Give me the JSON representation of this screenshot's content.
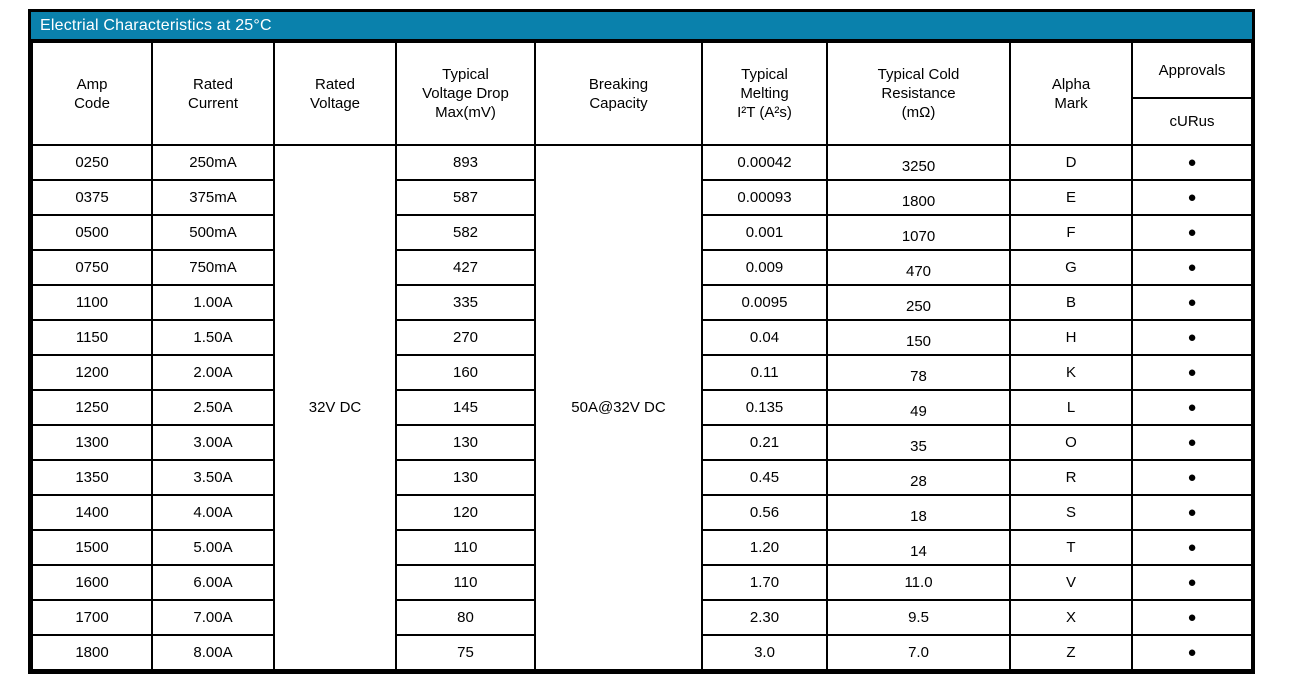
{
  "table": {
    "title": "Electrial Characteristics at 25°C",
    "title_bg": "#0A81AC",
    "title_color": "#ffffff",
    "border_color": "#000000",
    "headers": {
      "amp_code": "Amp\nCode",
      "rated_current": "Rated\nCurrent",
      "rated_voltage": "Rated\nVoltage",
      "voltage_drop": "Typical\nVoltage Drop\nMax(mV)",
      "breaking_capacity": "Breaking\nCapacity",
      "melting_i2t": "Typical\nMelting\nI²T (A²s)",
      "cold_resistance": "Typical Cold\nResistance\n(mΩ)",
      "alpha_mark": "Alpha\nMark",
      "approvals": "Approvals",
      "curus": "cURus"
    },
    "merged": {
      "rated_voltage": "32V DC",
      "breaking_capacity": "50A@32V DC"
    },
    "bullet": "●",
    "columns_order": [
      "amp_code",
      "rated_current",
      "voltage_drop",
      "melting_i2t",
      "cold_resistance",
      "alpha_mark"
    ],
    "rows": [
      {
        "amp_code": "0250",
        "rated_current": "250mA",
        "voltage_drop": "893",
        "melting_i2t": "0.00042",
        "cold_resistance": "3250",
        "alpha_mark": "D",
        "curus_approved": true
      },
      {
        "amp_code": "0375",
        "rated_current": "375mA",
        "voltage_drop": "587",
        "melting_i2t": "0.00093",
        "cold_resistance": "1800",
        "alpha_mark": "E",
        "curus_approved": true
      },
      {
        "amp_code": "0500",
        "rated_current": "500mA",
        "voltage_drop": "582",
        "melting_i2t": "0.001",
        "cold_resistance": "1070",
        "alpha_mark": "F",
        "curus_approved": true
      },
      {
        "amp_code": "0750",
        "rated_current": "750mA",
        "voltage_drop": "427",
        "melting_i2t": "0.009",
        "cold_resistance": "470",
        "alpha_mark": "G",
        "curus_approved": true
      },
      {
        "amp_code": "1100",
        "rated_current": "1.00A",
        "voltage_drop": "335",
        "melting_i2t": "0.0095",
        "cold_resistance": "250",
        "alpha_mark": "B",
        "curus_approved": true
      },
      {
        "amp_code": "1150",
        "rated_current": "1.50A",
        "voltage_drop": "270",
        "melting_i2t": "0.04",
        "cold_resistance": "150",
        "alpha_mark": "H",
        "curus_approved": true
      },
      {
        "amp_code": "1200",
        "rated_current": "2.00A",
        "voltage_drop": "160",
        "melting_i2t": "0.11",
        "cold_resistance": "78",
        "alpha_mark": "K",
        "curus_approved": true
      },
      {
        "amp_code": "1250",
        "rated_current": "2.50A",
        "voltage_drop": "145",
        "melting_i2t": "0.135",
        "cold_resistance": "49",
        "alpha_mark": "L",
        "curus_approved": true
      },
      {
        "amp_code": "1300",
        "rated_current": "3.00A",
        "voltage_drop": "130",
        "melting_i2t": "0.21",
        "cold_resistance": "35",
        "alpha_mark": "O",
        "curus_approved": true
      },
      {
        "amp_code": "1350",
        "rated_current": "3.50A",
        "voltage_drop": "130",
        "melting_i2t": "0.45",
        "cold_resistance": "28",
        "alpha_mark": "R",
        "curus_approved": true
      },
      {
        "amp_code": "1400",
        "rated_current": "4.00A",
        "voltage_drop": "120",
        "melting_i2t": "0.56",
        "cold_resistance": "18",
        "alpha_mark": "S",
        "curus_approved": true
      },
      {
        "amp_code": "1500",
        "rated_current": "5.00A",
        "voltage_drop": "110",
        "melting_i2t": "1.20",
        "cold_resistance": "14",
        "alpha_mark": "T",
        "curus_approved": true
      },
      {
        "amp_code": "1600",
        "rated_current": "6.00A",
        "voltage_drop": "110",
        "melting_i2t": "1.70",
        "cold_resistance": "11.0",
        "alpha_mark": "V",
        "curus_approved": true
      },
      {
        "amp_code": "1700",
        "rated_current": "7.00A",
        "voltage_drop": "80",
        "melting_i2t": "2.30",
        "cold_resistance": "9.5",
        "alpha_mark": "X",
        "curus_approved": true
      },
      {
        "amp_code": "1800",
        "rated_current": "8.00A",
        "voltage_drop": "75",
        "melting_i2t": "3.0",
        "cold_resistance": "7.0",
        "alpha_mark": "Z",
        "curus_approved": true
      }
    ]
  }
}
